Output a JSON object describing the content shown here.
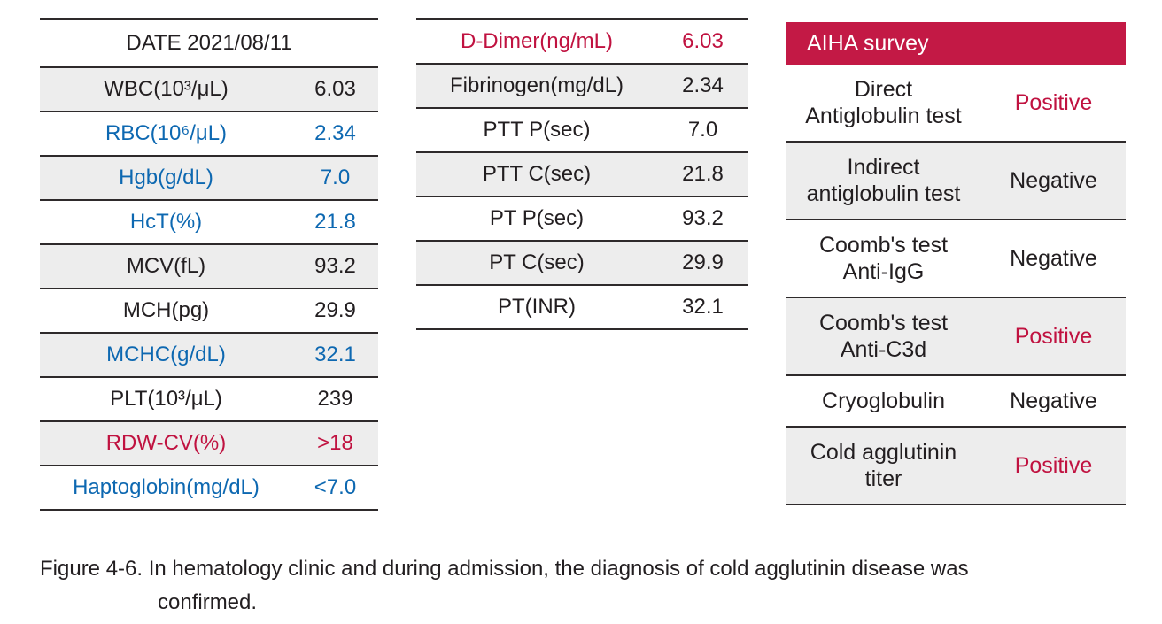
{
  "colors": {
    "header_red": "#c31945",
    "text_red": "#c01240",
    "text_blue": "#0d68b1",
    "row_gray": "#ededed",
    "line_dark": "#2e2a2b",
    "text_black": "#221e20"
  },
  "left_table": {
    "header": "DATE 2021/08/11",
    "rows": [
      {
        "label": "WBC(10³/μL)",
        "value": "6.03",
        "color": "black",
        "shaded": true
      },
      {
        "label": "RBC(10⁶/μL)",
        "value": "2.34",
        "color": "blue",
        "shaded": false
      },
      {
        "label": "Hgb(g/dL)",
        "value": "7.0",
        "color": "blue",
        "shaded": true
      },
      {
        "label": "HcT(%)",
        "value": "21.8",
        "color": "blue",
        "shaded": false
      },
      {
        "label": "MCV(fL)",
        "value": "93.2",
        "color": "black",
        "shaded": true
      },
      {
        "label": "MCH(pg)",
        "value": "29.9",
        "color": "black",
        "shaded": false
      },
      {
        "label": "MCHC(g/dL)",
        "value": "32.1",
        "color": "blue",
        "shaded": true
      },
      {
        "label": "PLT(10³/μL)",
        "value": "239",
        "color": "black",
        "shaded": false
      },
      {
        "label": "RDW-CV(%)",
        "value": ">18",
        "color": "red",
        "shaded": true
      },
      {
        "label": "Haptoglobin(mg/dL)",
        "value": "<7.0",
        "color": "blue",
        "shaded": false
      }
    ]
  },
  "middle_table": {
    "rows": [
      {
        "label": "D-Dimer(ng/mL)",
        "value": "6.03",
        "color": "red",
        "shaded": false
      },
      {
        "label": "Fibrinogen(mg/dL)",
        "value": "2.34",
        "color": "black",
        "shaded": true
      },
      {
        "label": "PTT P(sec)",
        "value": "7.0",
        "color": "black",
        "shaded": false
      },
      {
        "label": "PTT C(sec)",
        "value": "21.8",
        "color": "black",
        "shaded": true
      },
      {
        "label": "PT P(sec)",
        "value": "93.2",
        "color": "black",
        "shaded": false
      },
      {
        "label": "PT C(sec)",
        "value": "29.9",
        "color": "black",
        "shaded": true
      },
      {
        "label": "PT(INR)",
        "value": "32.1",
        "color": "black",
        "shaded": false
      }
    ]
  },
  "right_table": {
    "header": "AIHA survey",
    "rows": [
      {
        "label": "Direct\nAntiglobulin test",
        "value": "Positive",
        "color": "red",
        "value_only_color": true,
        "shaded": false
      },
      {
        "label": "Indirect\nantiglobulin test",
        "value": "Negative",
        "color": "black",
        "value_only_color": true,
        "shaded": true
      },
      {
        "label": "Coomb's test\nAnti-IgG",
        "value": "Negative",
        "color": "black",
        "value_only_color": true,
        "shaded": false
      },
      {
        "label": "Coomb's test\nAnti-C3d",
        "value": "Positive",
        "color": "red",
        "value_only_color": true,
        "shaded": true
      },
      {
        "label": "Cryoglobulin",
        "value": "Negative",
        "color": "black",
        "value_only_color": true,
        "shaded": false
      },
      {
        "label": "Cold agglutinin\ntiter",
        "value": "Positive",
        "color": "red",
        "value_only_color": true,
        "shaded": true
      }
    ]
  },
  "caption": {
    "text": "Figure 4-6. In hematology clinic and during admission, the diagnosis of cold agglutinin disease was\nconfirmed."
  }
}
